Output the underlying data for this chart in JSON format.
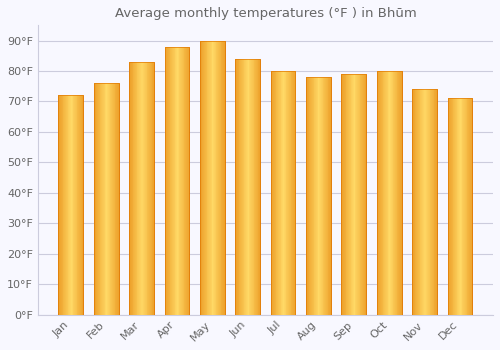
{
  "title": "Average monthly temperatures (°F ) in Bhūm",
  "months": [
    "Jan",
    "Feb",
    "Mar",
    "Apr",
    "May",
    "Jun",
    "Jul",
    "Aug",
    "Sep",
    "Oct",
    "Nov",
    "Dec"
  ],
  "values": [
    72,
    76,
    83,
    88,
    90,
    84,
    80,
    78,
    79,
    80,
    74,
    71
  ],
  "bar_color_main": "#FDB913",
  "bar_color_dark": "#E07800",
  "bar_color_light": "#FFD966",
  "ylim": [
    0,
    95
  ],
  "yticks": [
    0,
    10,
    20,
    30,
    40,
    50,
    60,
    70,
    80,
    90
  ],
  "ytick_labels": [
    "0°F",
    "10°F",
    "20°F",
    "30°F",
    "40°F",
    "50°F",
    "60°F",
    "70°F",
    "80°F",
    "90°F"
  ],
  "background_color": "#F8F8FF",
  "plot_bg_color": "#F8F8FF",
  "grid_color": "#CCCCDD",
  "title_fontsize": 9.5,
  "tick_fontsize": 8,
  "font_color": "#666666",
  "bar_width": 0.7,
  "figsize": [
    5.0,
    3.5
  ],
  "dpi": 100
}
